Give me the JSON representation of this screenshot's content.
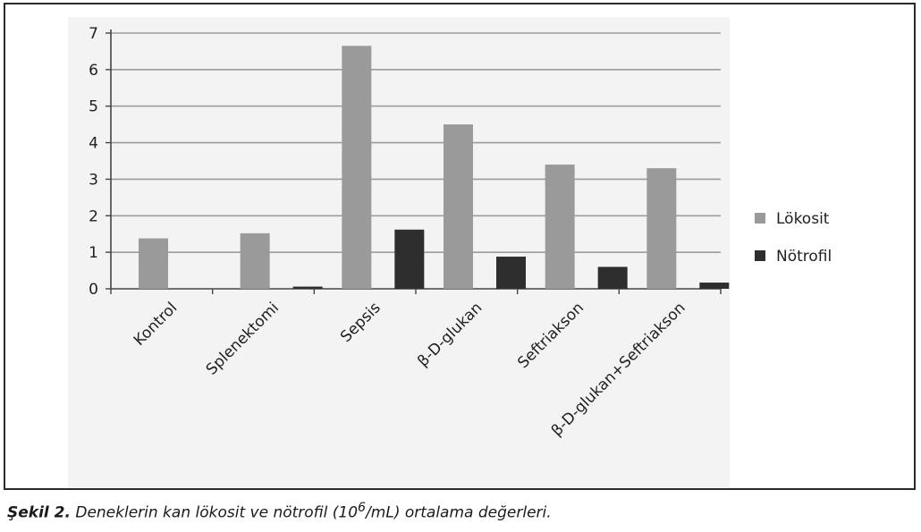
{
  "caption": {
    "lead": "Şekil 2.",
    "text_before_sup": " Deneklerin kan lökosit ve nötrofil (10",
    "sup": "6",
    "text_after_sup": "/mL) ortalama değerleri."
  },
  "chart_data": {
    "type": "bar",
    "categories": [
      "Kontrol",
      "Splenektomi",
      "Sepsis",
      "β-D-glukan",
      "Seftriakson",
      "β-D-glukan+Seftriakson"
    ],
    "series": [
      {
        "name": "Lökosit",
        "values": [
          1.38,
          1.52,
          6.65,
          4.5,
          3.4,
          3.3
        ],
        "color": "#9a9a9a"
      },
      {
        "name": "Nötrofil",
        "values": [
          0,
          0.06,
          1.62,
          0.88,
          0.6,
          0.17
        ],
        "color": "#2e2e2e"
      }
    ],
    "title": "",
    "xlabel": "",
    "ylabel": "",
    "ylim": [
      0,
      7
    ],
    "yticks": [
      0,
      1,
      2,
      3,
      4,
      5,
      6,
      7
    ],
    "grid": true,
    "legend_position": "right"
  }
}
